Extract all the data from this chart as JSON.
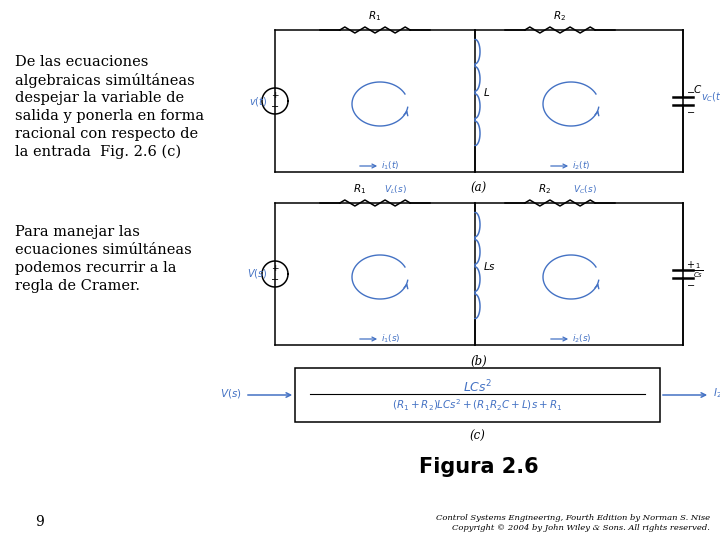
{
  "bg_color": "#ffffff",
  "text_color": "#000000",
  "blue_color": "#4472c4",
  "left_text_block": [
    "De las ecuaciones",
    "algebraicas simúltáneas",
    "despejar la variable de",
    "salida y ponerla en forma",
    "racional con respecto de",
    "la entrada  Fig. 2.6 (c)"
  ],
  "left_text_block2": [
    "Para manejar las",
    "ecuaciones simúltáneas",
    "podemos recurrir a la",
    "regla de Cramer."
  ],
  "figura_label": "Figura 2.6",
  "page_number": "9",
  "copyright_line1": "Control Systems Engineering, Fourth Edition by Norman S. Nise",
  "copyright_line2": "Copyright © 2004 by John Wiley & Sons. All rights reserved.",
  "caption_a": "(a)",
  "caption_b": "(b)",
  "caption_c": "(c)"
}
